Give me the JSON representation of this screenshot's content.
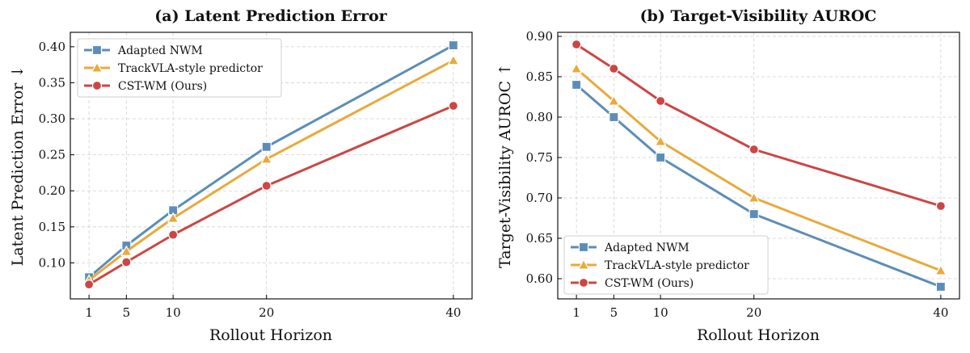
{
  "chart_data": [
    {
      "type": "line",
      "title": "(a) Latent Prediction Error",
      "xlabel": "Rollout Horizon",
      "ylabel": "Latent Prediction Error ↓",
      "x": [
        1,
        5,
        10,
        20,
        40
      ],
      "x_ticks": [
        "1",
        "5",
        "10",
        "20",
        "40"
      ],
      "xlim": [
        -1,
        42
      ],
      "ylim": [
        0.05,
        0.42
      ],
      "y_ticks": [
        "0.10",
        "0.15",
        "0.20",
        "0.25",
        "0.30",
        "0.35",
        "0.40"
      ],
      "grid": true,
      "legend_position": "top-left",
      "series": [
        {
          "name": "Adapted NWM",
          "values": [
            0.08,
            0.124,
            0.173,
            0.261,
            0.402
          ],
          "color": "#5b8db8",
          "marker": "square"
        },
        {
          "name": "TrackVLA-style predictor",
          "values": [
            0.076,
            0.116,
            0.162,
            0.244,
            0.381
          ],
          "color": "#e9a93b",
          "marker": "triangle"
        },
        {
          "name": "CST-WM (Ours)",
          "values": [
            0.07,
            0.101,
            0.139,
            0.207,
            0.318
          ],
          "color": "#cc4644",
          "marker": "circle"
        }
      ]
    },
    {
      "type": "line",
      "title": "(b) Target-Visibility AUROC",
      "xlabel": "Rollout Horizon",
      "ylabel": "Target-Visibility AUROC ↑",
      "x": [
        1,
        5,
        10,
        20,
        40
      ],
      "x_ticks": [
        "1",
        "5",
        "10",
        "20",
        "40"
      ],
      "xlim": [
        -1,
        42
      ],
      "ylim": [
        0.575,
        0.905
      ],
      "y_ticks": [
        "0.60",
        "0.65",
        "0.70",
        "0.75",
        "0.80",
        "0.85",
        "0.90"
      ],
      "grid": true,
      "legend_position": "bottom-left",
      "series": [
        {
          "name": "Adapted NWM",
          "values": [
            0.84,
            0.8,
            0.75,
            0.68,
            0.59
          ],
          "color": "#5b8db8",
          "marker": "square"
        },
        {
          "name": "TrackVLA-style predictor",
          "values": [
            0.86,
            0.82,
            0.77,
            0.7,
            0.61
          ],
          "color": "#e9a93b",
          "marker": "triangle"
        },
        {
          "name": "CST-WM (Ours)",
          "values": [
            0.89,
            0.86,
            0.82,
            0.76,
            0.69
          ],
          "color": "#cc4644",
          "marker": "circle"
        }
      ]
    }
  ]
}
